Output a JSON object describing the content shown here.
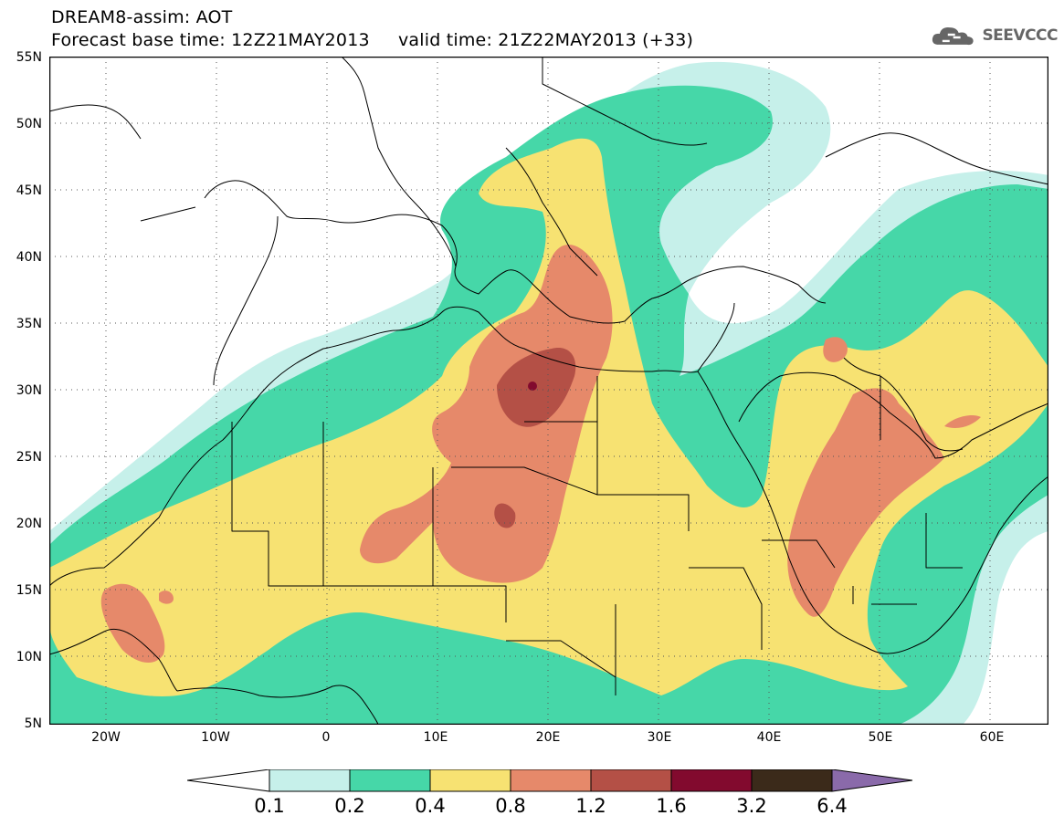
{
  "header": {
    "title_line1": "DREAM8-assim: AOT",
    "title_line2": "Forecast base time: 12Z21MAY2013     valid time: 21Z22MAY2013 (+33)",
    "logo_text": "SEEVCCC"
  },
  "map": {
    "lat_labels": [
      "55N",
      "50N",
      "45N",
      "40N",
      "35N",
      "30N",
      "25N",
      "20N",
      "15N",
      "10N",
      "5N"
    ],
    "lon_labels": [
      "20W",
      "10W",
      "0",
      "10E",
      "20E",
      "30E",
      "40E",
      "50E",
      "60E"
    ],
    "field_colors": {
      "background": "#ffffff",
      "level_0.1": "#c6f0ea",
      "level_0.2": "#46d7a8",
      "level_0.4": "#f7e272",
      "level_0.8": "#e6896a",
      "level_1.2": "#b45046",
      "level_1.6": "#820a2e",
      "border": "#000000"
    }
  },
  "legend": {
    "levels": [
      "0.1",
      "0.2",
      "0.4",
      "0.8",
      "1.2",
      "1.6",
      "3.2",
      "6.4"
    ],
    "colors": [
      "#ffffff",
      "#c6f0ea",
      "#46d7a8",
      "#f7e272",
      "#e6896a",
      "#b45046",
      "#820a2e",
      "#3b2a1a",
      "#8a6aaa"
    ]
  }
}
